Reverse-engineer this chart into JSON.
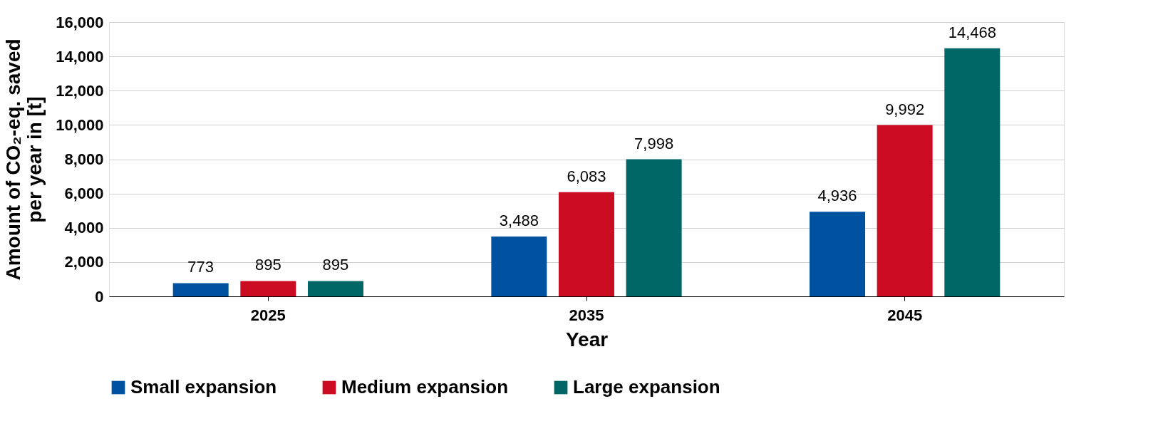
{
  "chart_data": {
    "type": "bar",
    "xlabel": "Year",
    "ylabel": "Amount of CO₂-eq. saved\nper year in [t]",
    "categories": [
      "2025",
      "2035",
      "2045"
    ],
    "series": [
      {
        "name": "Small expansion",
        "color": "#0052a0",
        "values": [
          773,
          3488,
          4936
        ]
      },
      {
        "name": "Medium expansion",
        "color": "#cc0c22",
        "values": [
          895,
          6083,
          9992
        ]
      },
      {
        "name": "Large expansion",
        "color": "#006666",
        "values": [
          895,
          7998,
          14468
        ]
      }
    ],
    "ylim": [
      0,
      16000
    ],
    "yticks": [
      {
        "value": 0,
        "label": "0"
      },
      {
        "value": 2000,
        "label": "2,000"
      },
      {
        "value": 4000,
        "label": "4,000"
      },
      {
        "value": 6000,
        "label": "6,000"
      },
      {
        "value": 8000,
        "label": "8,000"
      },
      {
        "value": 10000,
        "label": "10,000"
      },
      {
        "value": 12000,
        "label": "12,000"
      },
      {
        "value": 14000,
        "label": "14,000"
      },
      {
        "value": 16000,
        "label": "16,000"
      }
    ],
    "value_labels": [
      [
        "773",
        "3,488",
        "4,936"
      ],
      [
        "895",
        "6,083",
        "9,992"
      ],
      [
        "895",
        "7,998",
        "14,468"
      ]
    ],
    "grid": "y",
    "legend": "bottom"
  }
}
